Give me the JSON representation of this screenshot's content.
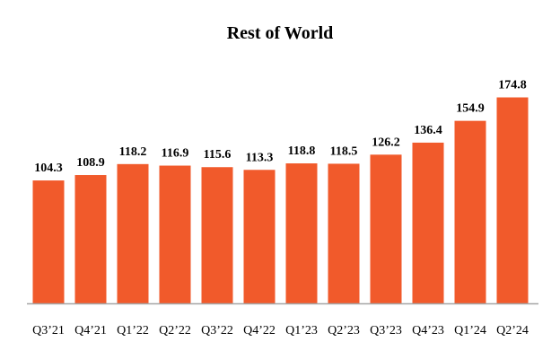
{
  "chart_data": {
    "type": "bar",
    "title": "Rest of World",
    "categories": [
      "Q3’21",
      "Q4’21",
      "Q1’22",
      "Q2’22",
      "Q3’22",
      "Q4’22",
      "Q1’23",
      "Q2’23",
      "Q3’23",
      "Q4’23",
      "Q1’24",
      "Q2’24"
    ],
    "values": [
      104.3,
      108.9,
      118.2,
      116.9,
      115.6,
      113.3,
      118.8,
      118.5,
      126.2,
      136.4,
      154.9,
      174.8
    ],
    "data_labels": [
      "104.3",
      "108.9",
      "118.2",
      "116.9",
      "115.6",
      "113.3",
      "118.8",
      "118.5",
      "126.2",
      "136.4",
      "154.9",
      "174.8"
    ],
    "xlabel": "",
    "ylabel": "",
    "ylim": [
      0,
      195
    ],
    "grid": false,
    "legend": "none",
    "bar_color": "#F15A2B",
    "axis_color": "#A6A6A6"
  }
}
